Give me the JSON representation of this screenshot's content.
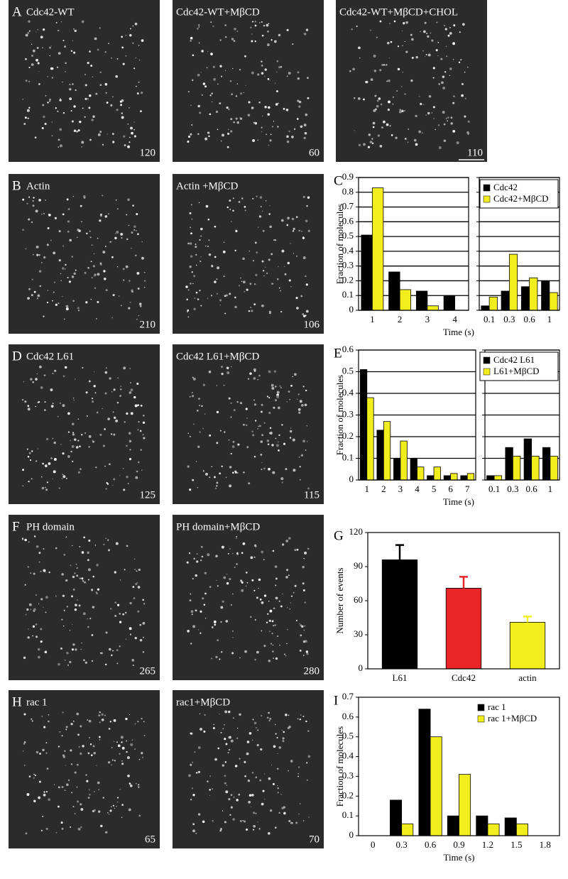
{
  "images": [
    {
      "panel": "A",
      "caption": "Cdc42-WT",
      "number": 120
    },
    {
      "caption": "Cdc42-WT+MβCD",
      "number": 60
    },
    {
      "caption": "Cdc42-WT+MβCD+CHOL",
      "number": 110
    },
    {
      "panel": "B",
      "caption": "Actin",
      "number": 210
    },
    {
      "caption": "Actin +MβCD",
      "number": 106
    },
    {
      "panel": "D",
      "caption": "Cdc42 L61",
      "number": 125
    },
    {
      "caption": "Cdc42 L61+MβCD",
      "number": 115
    },
    {
      "panel": "F",
      "caption": "PH domain",
      "number": 265
    },
    {
      "caption": "PH domain+MβCD",
      "number": 280
    },
    {
      "panel": "H",
      "caption": "rac 1",
      "number": 65
    },
    {
      "caption": "rac1+MβCD",
      "number": 70
    }
  ],
  "chart_data": [
    {
      "type": "bar",
      "panel": "C",
      "ylabel": "Fraction of molecules",
      "xlabel": "Time (s)",
      "categories": [
        "1",
        "2",
        "3",
        "4"
      ],
      "series": [
        {
          "color": "#000000",
          "values": [
            0.51,
            0.26,
            0.13,
            0.1
          ]
        },
        {
          "color": "#f2ee1e",
          "values": [
            0.83,
            0.14,
            0.03,
            0
          ]
        }
      ],
      "ylim": [
        0,
        0.9
      ],
      "yticks": [
        0,
        0.1,
        0.2,
        0.3,
        0.4,
        0.5,
        0.6,
        0.7,
        0.8,
        0.9
      ],
      "grid": true
    },
    {
      "type": "bar",
      "categories": [
        "0.1",
        "0.3",
        "0.6",
        "1"
      ],
      "series": [
        {
          "name": "Cdc42",
          "color": "#000000",
          "values": [
            0.03,
            0.13,
            0.16,
            0.2
          ]
        },
        {
          "name": "Cdc42+MβCD",
          "color": "#f2ee1e",
          "values": [
            0.09,
            0.38,
            0.22,
            0.12
          ]
        }
      ],
      "ylim": [
        0,
        0.9
      ],
      "yticks": [
        0,
        0.1,
        0.2,
        0.3,
        0.4,
        0.5,
        0.6,
        0.7,
        0.8,
        0.9
      ],
      "grid": true,
      "legend": "upper right"
    },
    {
      "type": "bar",
      "panel": "E",
      "ylabel": "Fraction of molecules",
      "xlabel": "Time (s)",
      "categories": [
        "1",
        "2",
        "3",
        "4",
        "5",
        "6",
        "7"
      ],
      "series": [
        {
          "color": "#000000",
          "values": [
            0.51,
            0.23,
            0.1,
            0.1,
            0.02,
            0.02,
            0.02
          ]
        },
        {
          "color": "#f2ee1e",
          "values": [
            0.38,
            0.27,
            0.18,
            0.06,
            0.06,
            0.03,
            0.03
          ]
        }
      ],
      "ylim": [
        0,
        0.6
      ],
      "yticks": [
        0,
        0.1,
        0.2,
        0.3,
        0.4,
        0.5,
        0.6
      ],
      "grid": true
    },
    {
      "type": "bar",
      "categories": [
        "0.1",
        "0.3",
        "0.6",
        "1"
      ],
      "series": [
        {
          "name": "Cdc42 L61",
          "color": "#000000",
          "values": [
            0.02,
            0.15,
            0.19,
            0.15
          ]
        },
        {
          "name": "L61+MβCD",
          "color": "#f2ee1e",
          "values": [
            0.02,
            0.11,
            0.11,
            0.11
          ]
        }
      ],
      "ylim": [
        0,
        0.6
      ],
      "yticks": [
        0,
        0.1,
        0.2,
        0.3,
        0.4,
        0.5,
        0.6
      ],
      "grid": true,
      "legend": "upper right"
    },
    {
      "type": "bar",
      "panel": "G",
      "ylabel": "Number of events",
      "categories": [
        "L61",
        "Cdc42",
        "actin"
      ],
      "values": [
        96,
        71,
        41
      ],
      "errors": [
        13,
        10,
        5
      ],
      "colors": [
        "#000000",
        "#e8262a",
        "#f2ee1e"
      ],
      "ylim": [
        0,
        120
      ],
      "yticks": [
        0,
        30,
        60,
        90,
        120
      ],
      "grid": false
    },
    {
      "type": "bar",
      "panel": "I",
      "ylabel": "Fraction of molecules",
      "xlabel": "Time (s)",
      "categories": [
        "0",
        "0.3",
        "0.6",
        "0.9",
        "1.2",
        "1.5",
        "1.8"
      ],
      "series": [
        {
          "name": "rac 1",
          "color": "#000000",
          "values": [
            null,
            0.18,
            0.64,
            0.1,
            0.1,
            0.09,
            null
          ]
        },
        {
          "name": "rac 1+MβCD",
          "color": "#f2ee1e",
          "values": [
            null,
            0.06,
            0.5,
            0.31,
            0.06,
            0.06,
            null
          ]
        }
      ],
      "ylim": [
        0,
        0.7
      ],
      "yticks": [
        0,
        0.1,
        0.2,
        0.3,
        0.4,
        0.5,
        0.6,
        0.7
      ],
      "grid": false,
      "legend": "upper right"
    }
  ]
}
